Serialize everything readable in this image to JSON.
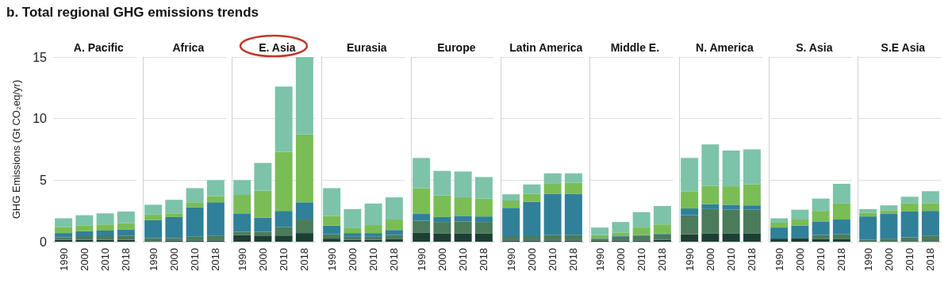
{
  "chart_data": [
    {
      "type": "bar",
      "title": "b. Total regional GHG emissions trends",
      "subtitle": "A. Pacific",
      "ylabel": "GHG Emissions (Gt CO₂eq/yr)",
      "categories": [
        "1990",
        "2000",
        "2010",
        "2018"
      ],
      "stacked": true,
      "ylim": [
        0,
        15
      ],
      "yticks": [
        0,
        5,
        10,
        15
      ],
      "grid": "y",
      "series": [
        {
          "color": "#1d3f33",
          "values": [
            0.15,
            0.15,
            0.15,
            0.15
          ]
        },
        {
          "color": "#4b7b5b",
          "values": [
            0.2,
            0.3,
            0.3,
            0.35
          ]
        },
        {
          "color": "#30809a",
          "values": [
            0.35,
            0.4,
            0.45,
            0.5
          ]
        },
        {
          "color": "#7abd55",
          "values": [
            0.5,
            0.45,
            0.5,
            0.5
          ]
        },
        {
          "color": "#7cc3aa",
          "values": [
            0.7,
            0.85,
            0.9,
            0.95
          ]
        }
      ]
    },
    {
      "type": "bar",
      "subtitle": "Africa",
      "categories": [
        "1990",
        "2000",
        "2010",
        "2018"
      ],
      "stacked": true,
      "ylim": [
        0,
        15
      ],
      "yticks": [
        0,
        5,
        10,
        15
      ],
      "grid": "y",
      "tick_labels": "x",
      "series": [
        {
          "color": "#1d3f33",
          "values": [
            0.05,
            0.1,
            0.1,
            0.1
          ]
        },
        {
          "color": "#4b7b5b",
          "values": [
            0.25,
            0.2,
            0.3,
            0.4
          ]
        },
        {
          "color": "#30809a",
          "values": [
            1.45,
            1.7,
            2.4,
            2.7
          ]
        },
        {
          "color": "#7abd55",
          "values": [
            0.45,
            0.3,
            0.4,
            0.5
          ]
        },
        {
          "color": "#7cc3aa",
          "values": [
            0.8,
            1.1,
            1.15,
            1.3
          ]
        }
      ]
    },
    {
      "type": "bar",
      "subtitle": "E. Asia",
      "categories": [
        "1990",
        "2000",
        "2010",
        "2018"
      ],
      "stacked": true,
      "ylim": [
        0,
        15
      ],
      "yticks": [
        0,
        5,
        10,
        15
      ],
      "grid": "y",
      "tick_labels": "x",
      "series": [
        {
          "color": "#1d3f33",
          "values": [
            0.55,
            0.45,
            0.5,
            0.7
          ]
        },
        {
          "color": "#4b7b5b",
          "values": [
            0.25,
            0.35,
            0.7,
            1.1
          ]
        },
        {
          "color": "#30809a",
          "values": [
            1.5,
            1.15,
            1.3,
            1.4
          ]
        },
        {
          "color": "#7abd55",
          "values": [
            1.5,
            2.2,
            4.8,
            5.5
          ]
        },
        {
          "color": "#7cc3aa",
          "values": [
            1.2,
            2.25,
            5.3,
            6.3
          ]
        }
      ]
    },
    {
      "type": "bar",
      "subtitle": "Eurasia",
      "categories": [
        "1990",
        "2000",
        "2010",
        "2018"
      ],
      "stacked": true,
      "ylim": [
        0,
        15
      ],
      "yticks": [
        0,
        5,
        10,
        15
      ],
      "grid": "y",
      "tick_labels": "x",
      "series": [
        {
          "color": "#1d3f33",
          "values": [
            0.25,
            0.15,
            0.15,
            0.2
          ]
        },
        {
          "color": "#4b7b5b",
          "values": [
            0.35,
            0.25,
            0.25,
            0.35
          ]
        },
        {
          "color": "#30809a",
          "values": [
            0.7,
            0.3,
            0.3,
            0.4
          ]
        },
        {
          "color": "#7abd55",
          "values": [
            0.8,
            0.4,
            0.65,
            0.85
          ]
        },
        {
          "color": "#7cc3aa",
          "values": [
            2.25,
            1.55,
            1.75,
            1.8
          ]
        }
      ]
    },
    {
      "type": "bar",
      "subtitle": "Europe",
      "categories": [
        "1990",
        "2000",
        "2010",
        "2018"
      ],
      "stacked": true,
      "ylim": [
        0,
        15
      ],
      "yticks": [
        0,
        5,
        10,
        15
      ],
      "grid": "y",
      "tick_labels": "x",
      "series": [
        {
          "color": "#1d3f33",
          "values": [
            0.75,
            0.65,
            0.65,
            0.65
          ]
        },
        {
          "color": "#4b7b5b",
          "values": [
            0.95,
            0.95,
            1.0,
            0.95
          ]
        },
        {
          "color": "#30809a",
          "values": [
            0.55,
            0.4,
            0.45,
            0.45
          ]
        },
        {
          "color": "#7abd55",
          "values": [
            2.1,
            1.75,
            1.5,
            1.45
          ]
        },
        {
          "color": "#7cc3aa",
          "values": [
            2.45,
            2.0,
            2.1,
            1.75
          ]
        }
      ]
    },
    {
      "type": "bar",
      "subtitle": "Latin America",
      "categories": [
        "1990",
        "2000",
        "2010",
        "2018"
      ],
      "stacked": true,
      "ylim": [
        0,
        15
      ],
      "yticks": [
        0,
        5,
        10,
        15
      ],
      "grid": "y",
      "tick_labels": "x",
      "series": [
        {
          "color": "#1d3f33",
          "values": [
            0.1,
            0.1,
            0.1,
            0.1
          ]
        },
        {
          "color": "#4b7b5b",
          "values": [
            0.35,
            0.35,
            0.45,
            0.45
          ]
        },
        {
          "color": "#30809a",
          "values": [
            2.3,
            2.8,
            3.35,
            3.35
          ]
        },
        {
          "color": "#7abd55",
          "values": [
            0.6,
            0.65,
            0.85,
            0.9
          ]
        },
        {
          "color": "#7cc3aa",
          "values": [
            0.5,
            0.75,
            0.8,
            0.75
          ]
        }
      ]
    },
    {
      "type": "bar",
      "subtitle": "Middle E.",
      "categories": [
        "1990",
        "2000",
        "2010",
        "2018"
      ],
      "stacked": true,
      "ylim": [
        0,
        15
      ],
      "yticks": [
        0,
        5,
        10,
        15
      ],
      "grid": "y",
      "tick_labels": "x",
      "series": [
        {
          "color": "#1d3f33",
          "values": [
            0.1,
            0.1,
            0.1,
            0.15
          ]
        },
        {
          "color": "#4b7b5b",
          "values": [
            0.1,
            0.3,
            0.4,
            0.45
          ]
        },
        {
          "color": "#30809a",
          "values": [
            0.05,
            0.05,
            0.05,
            0.05
          ]
        },
        {
          "color": "#7abd55",
          "values": [
            0.3,
            0.3,
            0.6,
            0.75
          ]
        },
        {
          "color": "#7cc3aa",
          "values": [
            0.6,
            0.85,
            1.25,
            1.5
          ]
        }
      ]
    },
    {
      "type": "bar",
      "subtitle": "N. America",
      "categories": [
        "1990",
        "2000",
        "2010",
        "2018"
      ],
      "stacked": true,
      "ylim": [
        0,
        15
      ],
      "yticks": [
        0,
        5,
        10,
        15
      ],
      "grid": "y",
      "tick_labels": "x",
      "series": [
        {
          "color": "#1d3f33",
          "values": [
            0.6,
            0.65,
            0.65,
            0.65
          ]
        },
        {
          "color": "#4b7b5b",
          "values": [
            1.55,
            2.0,
            1.95,
            1.95
          ]
        },
        {
          "color": "#30809a",
          "values": [
            0.55,
            0.4,
            0.4,
            0.35
          ]
        },
        {
          "color": "#7abd55",
          "values": [
            1.4,
            1.5,
            1.5,
            1.7
          ]
        },
        {
          "color": "#7cc3aa",
          "values": [
            2.7,
            3.35,
            2.9,
            2.85
          ]
        }
      ]
    },
    {
      "type": "bar",
      "subtitle": "S. Asia",
      "categories": [
        "1990",
        "2000",
        "2010",
        "2018"
      ],
      "stacked": true,
      "ylim": [
        0,
        15
      ],
      "yticks": [
        0,
        5,
        10,
        15
      ],
      "grid": "y",
      "tick_labels": "x",
      "series": [
        {
          "color": "#1d3f33",
          "values": [
            0.25,
            0.3,
            0.2,
            0.2
          ]
        },
        {
          "color": "#4b7b5b",
          "values": [
            0,
            0,
            0.35,
            0.4
          ]
        },
        {
          "color": "#30809a",
          "values": [
            0.9,
            1.0,
            1.1,
            1.2
          ]
        },
        {
          "color": "#7abd55",
          "values": [
            0.4,
            0.5,
            0.85,
            1.3
          ]
        },
        {
          "color": "#7cc3aa",
          "values": [
            0.35,
            0.8,
            1.0,
            1.6
          ]
        }
      ]
    },
    {
      "type": "bar",
      "subtitle": "S.E Asia",
      "categories": [
        "1990",
        "2000",
        "2010",
        "2018"
      ],
      "stacked": true,
      "ylim": [
        0,
        15
      ],
      "yticks": [
        0,
        5,
        10,
        15
      ],
      "grid": "y",
      "tick_labels": "x",
      "series": [
        {
          "color": "#1d3f33",
          "values": [
            0.05,
            0.05,
            0.05,
            0.05
          ]
        },
        {
          "color": "#4b7b5b",
          "values": [
            0.1,
            0.2,
            0.3,
            0.45
          ]
        },
        {
          "color": "#30809a",
          "values": [
            1.9,
            2.0,
            2.1,
            2.0
          ]
        },
        {
          "color": "#7abd55",
          "values": [
            0.3,
            0.3,
            0.65,
            0.6
          ]
        },
        {
          "color": "#7cc3aa",
          "values": [
            0.3,
            0.4,
            0.55,
            1.0
          ]
        }
      ]
    }
  ]
}
